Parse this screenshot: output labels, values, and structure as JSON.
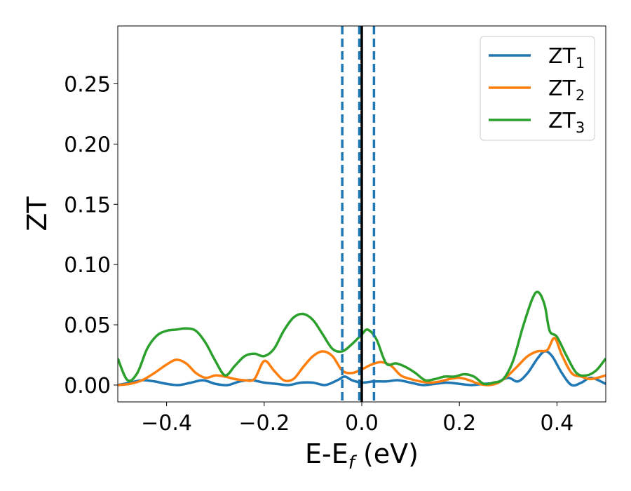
{
  "chart_data": {
    "type": "line",
    "xlabel": "E-E",
    "xlabel_sub": "f",
    "xlabel_unit": " (eV)",
    "ylabel": "ZT",
    "xlim": [
      -0.5,
      0.5
    ],
    "ylim": [
      -0.014,
      0.298
    ],
    "xticks": [
      -0.4,
      -0.2,
      0.0,
      0.2,
      0.4
    ],
    "xtick_labels": [
      "−0.4",
      "−0.2",
      "0.0",
      "0.2",
      "0.4"
    ],
    "yticks": [
      0.0,
      0.05,
      0.1,
      0.15,
      0.2,
      0.25
    ],
    "ytick_labels": [
      "0.00",
      "0.05",
      "0.10",
      "0.15",
      "0.20",
      "0.25"
    ],
    "grid": false,
    "legend_position": "top-right",
    "vlines": [
      {
        "x": -0.04,
        "style": "dashed",
        "color": "#1f77b4"
      },
      {
        "x": -0.005,
        "style": "dashed",
        "color": "#1f77b4"
      },
      {
        "x": 0.025,
        "style": "dashed",
        "color": "#1f77b4"
      },
      {
        "x": 0.0,
        "style": "solid",
        "color": "#000000"
      }
    ],
    "series": [
      {
        "name": "ZT",
        "name_sub": "1",
        "color": "#1f77b4",
        "points": [
          [
            -0.5,
            0.0
          ],
          [
            -0.475,
            0.002
          ],
          [
            -0.45,
            0.004
          ],
          [
            -0.425,
            0.003
          ],
          [
            -0.4,
            0.001
          ],
          [
            -0.375,
            0.0
          ],
          [
            -0.35,
            0.002
          ],
          [
            -0.325,
            0.004
          ],
          [
            -0.3,
            0.001
          ],
          [
            -0.275,
            0.0
          ],
          [
            -0.25,
            0.003
          ],
          [
            -0.225,
            0.004
          ],
          [
            -0.2,
            0.002
          ],
          [
            -0.175,
            0.001
          ],
          [
            -0.15,
            0.0
          ],
          [
            -0.125,
            0.002
          ],
          [
            -0.1,
            0.002
          ],
          [
            -0.075,
            0.0
          ],
          [
            -0.05,
            0.004
          ],
          [
            -0.035,
            0.007
          ],
          [
            -0.02,
            0.004
          ],
          [
            0.0,
            0.002
          ],
          [
            0.025,
            0.003
          ],
          [
            0.05,
            0.003
          ],
          [
            0.075,
            0.004
          ],
          [
            0.1,
            0.002
          ],
          [
            0.125,
            0.0
          ],
          [
            0.15,
            0.001
          ],
          [
            0.175,
            0.002
          ],
          [
            0.2,
            0.001
          ],
          [
            0.225,
            0.0
          ],
          [
            0.25,
            0.001
          ],
          [
            0.275,
            0.002
          ],
          [
            0.3,
            0.006
          ],
          [
            0.32,
            0.003
          ],
          [
            0.34,
            0.01
          ],
          [
            0.36,
            0.022
          ],
          [
            0.375,
            0.028
          ],
          [
            0.39,
            0.024
          ],
          [
            0.41,
            0.01
          ],
          [
            0.43,
            0.0
          ],
          [
            0.45,
            0.002
          ],
          [
            0.47,
            0.006
          ],
          [
            0.5,
            0.001
          ]
        ]
      },
      {
        "name": "ZT",
        "name_sub": "2",
        "color": "#ff7f0e",
        "points": [
          [
            -0.5,
            0.0
          ],
          [
            -0.475,
            0.001
          ],
          [
            -0.45,
            0.004
          ],
          [
            -0.425,
            0.01
          ],
          [
            -0.4,
            0.017
          ],
          [
            -0.38,
            0.021
          ],
          [
            -0.36,
            0.018
          ],
          [
            -0.34,
            0.01
          ],
          [
            -0.32,
            0.006
          ],
          [
            -0.3,
            0.008
          ],
          [
            -0.28,
            0.007
          ],
          [
            -0.26,
            0.005
          ],
          [
            -0.24,
            0.004
          ],
          [
            -0.22,
            0.005
          ],
          [
            -0.2,
            0.02
          ],
          [
            -0.18,
            0.012
          ],
          [
            -0.16,
            0.004
          ],
          [
            -0.14,
            0.005
          ],
          [
            -0.12,
            0.015
          ],
          [
            -0.1,
            0.024
          ],
          [
            -0.08,
            0.028
          ],
          [
            -0.06,
            0.024
          ],
          [
            -0.04,
            0.012
          ],
          [
            -0.02,
            0.01
          ],
          [
            0.0,
            0.013
          ],
          [
            0.02,
            0.017
          ],
          [
            0.04,
            0.019
          ],
          [
            0.06,
            0.016
          ],
          [
            0.08,
            0.008
          ],
          [
            0.1,
            0.005
          ],
          [
            0.12,
            0.003
          ],
          [
            0.14,
            0.002
          ],
          [
            0.16,
            0.003
          ],
          [
            0.18,
            0.005
          ],
          [
            0.2,
            0.006
          ],
          [
            0.22,
            0.004
          ],
          [
            0.24,
            0.001
          ],
          [
            0.26,
            0.0
          ],
          [
            0.28,
            0.002
          ],
          [
            0.3,
            0.008
          ],
          [
            0.32,
            0.016
          ],
          [
            0.34,
            0.024
          ],
          [
            0.36,
            0.028
          ],
          [
            0.38,
            0.029
          ],
          [
            0.395,
            0.039
          ],
          [
            0.41,
            0.025
          ],
          [
            0.43,
            0.01
          ],
          [
            0.45,
            0.007
          ],
          [
            0.47,
            0.005
          ],
          [
            0.5,
            0.008
          ]
        ]
      },
      {
        "name": "ZT",
        "name_sub": "3",
        "color": "#2ca02c",
        "points": [
          [
            -0.5,
            0.022
          ],
          [
            -0.48,
            0.004
          ],
          [
            -0.46,
            0.01
          ],
          [
            -0.44,
            0.03
          ],
          [
            -0.42,
            0.041
          ],
          [
            -0.4,
            0.045
          ],
          [
            -0.38,
            0.046
          ],
          [
            -0.36,
            0.047
          ],
          [
            -0.34,
            0.045
          ],
          [
            -0.32,
            0.035
          ],
          [
            -0.3,
            0.02
          ],
          [
            -0.28,
            0.008
          ],
          [
            -0.26,
            0.016
          ],
          [
            -0.24,
            0.024
          ],
          [
            -0.22,
            0.026
          ],
          [
            -0.2,
            0.024
          ],
          [
            -0.18,
            0.03
          ],
          [
            -0.16,
            0.045
          ],
          [
            -0.14,
            0.056
          ],
          [
            -0.12,
            0.059
          ],
          [
            -0.1,
            0.054
          ],
          [
            -0.08,
            0.042
          ],
          [
            -0.06,
            0.03
          ],
          [
            -0.04,
            0.028
          ],
          [
            -0.02,
            0.034
          ],
          [
            0.0,
            0.042
          ],
          [
            0.012,
            0.046
          ],
          [
            0.03,
            0.038
          ],
          [
            0.05,
            0.018
          ],
          [
            0.07,
            0.018
          ],
          [
            0.09,
            0.015
          ],
          [
            0.11,
            0.01
          ],
          [
            0.13,
            0.004
          ],
          [
            0.15,
            0.005
          ],
          [
            0.17,
            0.007
          ],
          [
            0.19,
            0.007
          ],
          [
            0.21,
            0.009
          ],
          [
            0.23,
            0.007
          ],
          [
            0.25,
            0.001
          ],
          [
            0.27,
            0.002
          ],
          [
            0.29,
            0.005
          ],
          [
            0.31,
            0.02
          ],
          [
            0.33,
            0.048
          ],
          [
            0.35,
            0.072
          ],
          [
            0.362,
            0.077
          ],
          [
            0.375,
            0.066
          ],
          [
            0.385,
            0.045
          ],
          [
            0.4,
            0.04
          ],
          [
            0.42,
            0.024
          ],
          [
            0.44,
            0.01
          ],
          [
            0.46,
            0.008
          ],
          [
            0.48,
            0.012
          ],
          [
            0.5,
            0.022
          ]
        ]
      }
    ]
  }
}
